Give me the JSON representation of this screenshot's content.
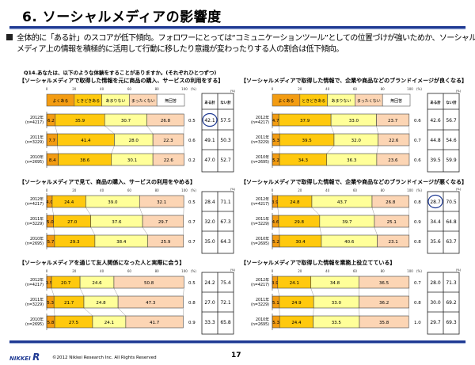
{
  "header": {
    "title": "6. ソーシャルメディアの影響度"
  },
  "summary": {
    "line1": "全体的に「ある計」のスコアが低下傾向。フォロワーにとっては“コミュニケーションツール”としての位置づけが強いためか、ソーシャル",
    "line2": "メディア上の情報を積極的に活用して行動に移したり意識が変わったりする人の割合は低下傾向。"
  },
  "question": "Q14.あなたは、以下のような体験をすることがありますか。(それぞれひとつずつ)",
  "legend": [
    "よくある",
    "ときどきある",
    "あまりない",
    "まったくない",
    "無回答"
  ],
  "colors": {
    "よくある": "#f39c12",
    "ときどきある": "#ffc90e",
    "あまりない": "#ffff99",
    "まったくない": "#fcd5b4",
    "無回答": "#ffffff",
    "accent": "#1f3a93"
  },
  "axis_ticks": [
    "0",
    "20",
    "40",
    "60",
    "80",
    "100"
  ],
  "axis_unit": "(%)",
  "totals_unit": "(%)",
  "totals_headers": [
    "ある計",
    "ない計"
  ],
  "chart_data": [
    {
      "type": "bar",
      "stacked": true,
      "orientation": "horizontal",
      "title": "【ソーシャルメディアで取得した情報を元に商品の購入、サービスの利用をする】",
      "categories": [
        [
          "2012年",
          "(n=4217)"
        ],
        [
          "2011年",
          "(n=3229)"
        ],
        [
          "2010年",
          "(n=2695)"
        ]
      ],
      "xlim": [
        0,
        100
      ],
      "show_legend": true,
      "series": [
        {
          "name": "よくある",
          "values": [
            6.2,
            7.7,
            8.4
          ]
        },
        {
          "name": "ときどきある",
          "values": [
            35.9,
            41.4,
            38.6
          ]
        },
        {
          "name": "あまりない",
          "values": [
            30.7,
            28.0,
            30.1
          ]
        },
        {
          "name": "まったくない",
          "values": [
            26.8,
            22.3,
            22.6
          ]
        },
        {
          "name": "無回答",
          "values": [
            0.5,
            0.6,
            0.2
          ]
        }
      ],
      "totals": {
        "ある計": [
          42.1,
          49.1,
          47.0
        ],
        "ない計": [
          57.5,
          50.3,
          52.7
        ]
      },
      "highlighted": "2012年 ある計"
    },
    {
      "type": "bar",
      "stacked": true,
      "orientation": "horizontal",
      "title": "【ソーシャルメディアで取得した情報で、企業や商品などのブランドイメージが良くなる】",
      "categories": [
        [
          "2012年",
          "(n=4217)"
        ],
        [
          "2011年",
          "(n=3229)"
        ],
        [
          "2010年",
          "(n=2695)"
        ]
      ],
      "xlim": [
        0,
        100
      ],
      "show_legend": true,
      "series": [
        {
          "name": "よくある",
          "values": [
            4.7,
            5.3,
            5.2
          ]
        },
        {
          "name": "ときどきある",
          "values": [
            37.9,
            39.5,
            34.3
          ]
        },
        {
          "name": "あまりない",
          "values": [
            33.0,
            32.0,
            36.3
          ]
        },
        {
          "name": "まったくない",
          "values": [
            23.7,
            22.6,
            23.6
          ]
        },
        {
          "name": "無回答",
          "values": [
            0.6,
            0.7,
            0.6
          ]
        }
      ],
      "totals": {
        "ある計": [
          42.6,
          44.8,
          39.5
        ],
        "ない計": [
          56.7,
          54.6,
          59.9
        ]
      }
    },
    {
      "type": "bar",
      "stacked": true,
      "orientation": "horizontal",
      "title": "【ソーシャルメディアで見て、商品の購入、サービスの利用をやめる】",
      "categories": [
        [
          "2012年",
          "(n=4217)"
        ],
        [
          "2011年",
          "(n=3229)"
        ],
        [
          "2010年",
          "(n=2695)"
        ]
      ],
      "xlim": [
        0,
        100
      ],
      "show_legend": false,
      "series": [
        {
          "name": "よくある",
          "values": [
            4.0,
            5.0,
            5.7
          ]
        },
        {
          "name": "ときどきある",
          "values": [
            24.4,
            27.0,
            29.3
          ]
        },
        {
          "name": "あまりない",
          "values": [
            39.0,
            37.6,
            38.4
          ]
        },
        {
          "name": "まったくない",
          "values": [
            32.1,
            29.7,
            25.9
          ]
        },
        {
          "name": "無回答",
          "values": [
            0.5,
            0.7,
            0.7
          ]
        }
      ],
      "totals": {
        "ある計": [
          28.4,
          32.0,
          35.0
        ],
        "ない計": [
          71.1,
          67.3,
          64.3
        ]
      }
    },
    {
      "type": "bar",
      "stacked": true,
      "orientation": "horizontal",
      "title": "【ソーシャルメディアで取得した情報で、企業や商品などのブランドイメージが悪くなる】",
      "categories": [
        [
          "2012年",
          "(n=4217)"
        ],
        [
          "2011年",
          "(n=3229)"
        ],
        [
          "2010年",
          "(n=2695)"
        ]
      ],
      "xlim": [
        0,
        100
      ],
      "show_legend": false,
      "series": [
        {
          "name": "よくある",
          "values": [
            3.9,
            4.6,
            5.2
          ]
        },
        {
          "name": "ときどきある",
          "values": [
            24.8,
            29.8,
            30.4
          ]
        },
        {
          "name": "あまりない",
          "values": [
            43.7,
            39.7,
            40.6
          ]
        },
        {
          "name": "まったくない",
          "values": [
            26.8,
            25.1,
            23.1
          ]
        },
        {
          "name": "無回答",
          "values": [
            0.8,
            0.9,
            0.8
          ]
        }
      ],
      "totals": {
        "ある計": [
          28.7,
          34.4,
          35.6
        ],
        "ない計": [
          70.5,
          64.8,
          63.7
        ]
      },
      "highlighted": "2012年 ある計"
    },
    {
      "type": "bar",
      "stacked": true,
      "orientation": "horizontal",
      "title": "【ソーシャルメディアを通じて友人関係になった人と実際に会う】",
      "categories": [
        [
          "2012年",
          "(n=4217)"
        ],
        [
          "2011年",
          "(n=3229)"
        ],
        [
          "2010年",
          "(n=2695)"
        ]
      ],
      "xlim": [
        0,
        100
      ],
      "show_legend": false,
      "series": [
        {
          "name": "よくある",
          "values": [
            3.5,
            5.3,
            5.8
          ]
        },
        {
          "name": "ときどきある",
          "values": [
            20.7,
            21.7,
            27.5
          ]
        },
        {
          "name": "あまりない",
          "values": [
            24.6,
            24.8,
            24.1
          ]
        },
        {
          "name": "まったくない",
          "values": [
            50.8,
            47.3,
            41.7
          ]
        },
        {
          "name": "無回答",
          "values": [
            0.5,
            0.8,
            0.9
          ]
        }
      ],
      "totals": {
        "ある計": [
          24.2,
          27.0,
          33.3
        ],
        "ない計": [
          75.4,
          72.1,
          65.8
        ]
      }
    },
    {
      "type": "bar",
      "stacked": true,
      "orientation": "horizontal",
      "title": "【ソーシャルメディアで取得した情報を業務上役立てている】",
      "categories": [
        [
          "2012年",
          "(n=4217)"
        ],
        [
          "2011年",
          "(n=3229)"
        ],
        [
          "2010年",
          "(n=2695)"
        ]
      ],
      "xlim": [
        0,
        100
      ],
      "show_legend": false,
      "series": [
        {
          "name": "よくある",
          "values": [
            3.9,
            5.1,
            5.3
          ]
        },
        {
          "name": "ときどきある",
          "values": [
            24.1,
            24.9,
            24.4
          ]
        },
        {
          "name": "あまりない",
          "values": [
            34.8,
            33.0,
            33.5
          ]
        },
        {
          "name": "まったくない",
          "values": [
            36.5,
            36.2,
            35.8
          ]
        },
        {
          "name": "無回答",
          "values": [
            0.7,
            0.8,
            1.0
          ]
        }
      ],
      "totals": {
        "ある計": [
          28.0,
          30.0,
          29.7
        ],
        "ない計": [
          71.3,
          69.2,
          69.3
        ]
      }
    }
  ],
  "footer": {
    "logo": "NIKKEI R",
    "copyright": "©2012 Nikkei Research Inc. All Rights Reserved",
    "page_number": "17"
  }
}
